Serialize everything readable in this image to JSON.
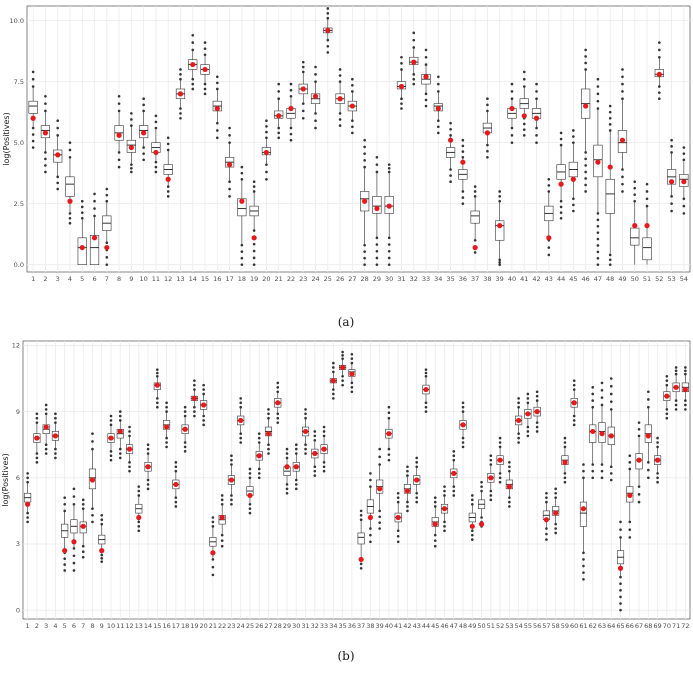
{
  "chart_data": [
    {
      "type": "boxplot",
      "panel_label": "(a)",
      "ylabel": "log(Positives)",
      "ylim": [
        -0.3,
        10.6
      ],
      "yticks": [
        "0.0",
        "2.5",
        "5.0",
        "7.5",
        "10.0"
      ],
      "ytick_values": [
        0,
        2.5,
        5,
        7.5,
        10
      ],
      "grid": true,
      "categories": [
        "1",
        "2",
        "3",
        "4",
        "5",
        "6",
        "7",
        "8",
        "9",
        "10",
        "11",
        "12",
        "13",
        "14",
        "15",
        "16",
        "17",
        "18",
        "19",
        "20",
        "21",
        "22",
        "23",
        "24",
        "25",
        "26",
        "27",
        "28",
        "29",
        "30",
        "31",
        "32",
        "33",
        "34",
        "35",
        "36",
        "37",
        "38",
        "39",
        "40",
        "41",
        "42",
        "43",
        "44",
        "45",
        "46",
        "47",
        "48",
        "49",
        "50",
        "51",
        "52",
        "53",
        "54"
      ],
      "median": [
        6.5,
        5.5,
        4.5,
        3.3,
        0.7,
        0.7,
        1.7,
        5.4,
        4.9,
        5.5,
        4.8,
        3.9,
        7.0,
        8.2,
        8.0,
        6.5,
        4.2,
        2.3,
        2.2,
        4.6,
        6.1,
        6.2,
        7.2,
        6.8,
        9.6,
        6.8,
        6.5,
        2.7,
        2.4,
        2.4,
        7.3,
        8.3,
        7.6,
        6.5,
        4.6,
        3.7,
        2.0,
        5.6,
        1.6,
        6.2,
        6.6,
        6.2,
        2.1,
        3.8,
        3.9,
        6.6,
        4.3,
        2.9,
        5.0,
        1.1,
        0.7,
        7.8,
        3.6,
        3.5
      ],
      "q1": [
        6.2,
        5.2,
        4.2,
        2.8,
        0.0,
        0.0,
        1.4,
        5.1,
        4.6,
        5.2,
        4.6,
        3.7,
        6.8,
        8.0,
        7.8,
        6.3,
        4.0,
        2.0,
        2.0,
        4.5,
        6.0,
        6.0,
        7.0,
        6.6,
        9.5,
        6.6,
        6.3,
        2.2,
        2.1,
        2.1,
        7.2,
        8.2,
        7.4,
        6.3,
        4.4,
        3.5,
        1.7,
        5.4,
        1.0,
        6.0,
        6.4,
        6.0,
        1.8,
        3.5,
        3.6,
        6.0,
        3.6,
        2.1,
        4.6,
        0.8,
        0.2,
        7.7,
        3.3,
        3.2
      ],
      "q3": [
        6.7,
        5.7,
        4.7,
        3.6,
        1.1,
        1.2,
        2.0,
        5.7,
        5.1,
        5.7,
        5.0,
        4.1,
        7.2,
        8.4,
        8.2,
        6.7,
        4.4,
        2.7,
        2.4,
        4.8,
        6.3,
        6.4,
        7.4,
        7.0,
        9.7,
        7.0,
        6.7,
        3.0,
        2.8,
        2.8,
        7.5,
        8.5,
        7.8,
        6.6,
        4.8,
        3.9,
        2.2,
        5.8,
        1.8,
        6.4,
        6.8,
        6.4,
        2.4,
        4.1,
        4.2,
        7.2,
        4.9,
        3.5,
        5.5,
        1.5,
        1.1,
        8.0,
        3.9,
        3.7
      ],
      "wlo": [
        5.6,
        4.6,
        3.6,
        2.1,
        0.0,
        0.0,
        0.9,
        4.6,
        4.1,
        4.8,
        4.2,
        3.2,
        6.4,
        7.6,
        7.4,
        5.8,
        3.4,
        0.8,
        1.4,
        4.1,
        5.6,
        5.6,
        6.6,
        6.2,
        9.2,
        6.2,
        5.9,
        0.8,
        1.1,
        1.1,
        6.8,
        7.8,
        7.0,
        5.9,
        3.9,
        3.0,
        1.0,
        4.9,
        0.2,
        5.6,
        6.0,
        5.6,
        1.0,
        2.6,
        2.7,
        4.6,
        2.1,
        0.4,
        3.9,
        0.0,
        0.0,
        7.3,
        2.8,
        2.7
      ],
      "whi": [
        7.3,
        6.3,
        5.3,
        4.4,
        1.9,
        2.0,
        2.6,
        6.3,
        5.7,
        6.3,
        5.6,
        4.7,
        7.6,
        8.8,
        8.6,
        7.2,
        5.0,
        3.5,
        3.0,
        5.2,
        6.8,
        6.9,
        7.9,
        7.5,
        10.1,
        7.5,
        7.1,
        4.0,
        3.8,
        3.8,
        8.0,
        8.9,
        8.2,
        7.1,
        5.3,
        4.4,
        2.8,
        6.3,
        2.6,
        6.8,
        7.3,
        6.8,
        3.0,
        4.9,
        5.0,
        8.0,
        6.4,
        5.5,
        6.8,
        2.6,
        2.4,
        8.5,
        4.6,
        4.3
      ],
      "omin": [
        4.8,
        3.8,
        3.1,
        1.7,
        0.0,
        0.0,
        0.0,
        4.0,
        3.8,
        4.3,
        3.8,
        2.8,
        6.0,
        7.2,
        7.0,
        5.2,
        2.8,
        0.0,
        0.0,
        3.5,
        5.2,
        5.1,
        6.0,
        5.6,
        8.7,
        5.7,
        5.4,
        0.0,
        0.0,
        0.0,
        6.4,
        7.4,
        6.5,
        5.4,
        3.4,
        2.5,
        0.5,
        4.4,
        0.0,
        5.0,
        5.3,
        5.0,
        0.4,
        1.9,
        2.2,
        3.0,
        0.0,
        0.0,
        3.0,
        0.0,
        0.0,
        6.8,
        2.2,
        2.1
      ],
      "omax": [
        7.9,
        6.9,
        5.9,
        5.0,
        2.6,
        2.9,
        3.1,
        6.9,
        6.2,
        6.8,
        6.1,
        5.2,
        8.0,
        9.4,
        9.1,
        7.7,
        5.6,
        4.0,
        3.4,
        5.9,
        7.4,
        7.4,
        8.3,
        8.1,
        10.5,
        8.0,
        7.6,
        5.1,
        4.4,
        4.1,
        8.5,
        9.5,
        8.8,
        7.7,
        5.8,
        5.1,
        3.2,
        6.8,
        3.0,
        7.4,
        7.9,
        7.4,
        3.5,
        5.4,
        5.5,
        8.8,
        7.6,
        6.5,
        8.0,
        3.4,
        3.3,
        9.1,
        5.1,
        4.8
      ],
      "observed": [
        6.0,
        5.4,
        4.5,
        2.6,
        0.7,
        1.1,
        0.7,
        5.3,
        4.8,
        5.4,
        4.6,
        3.5,
        7.0,
        8.2,
        8.0,
        6.4,
        4.1,
        2.6,
        1.1,
        4.6,
        6.1,
        6.4,
        7.2,
        6.9,
        9.6,
        6.8,
        6.5,
        2.6,
        2.3,
        2.4,
        7.3,
        8.3,
        7.7,
        6.4,
        5.1,
        4.2,
        0.7,
        5.4,
        1.6,
        6.4,
        6.1,
        6.0,
        1.1,
        3.3,
        3.5,
        6.5,
        4.2,
        4.0,
        5.1,
        1.6,
        1.6,
        7.8,
        3.4,
        3.4
      ]
    },
    {
      "type": "boxplot",
      "panel_label": "(b)",
      "ylabel": "log(Positives)",
      "ylim": [
        -0.4,
        12.2
      ],
      "yticks": [
        "0",
        "3",
        "6",
        "9",
        "12"
      ],
      "ytick_values": [
        0,
        3,
        6,
        9,
        12
      ],
      "grid": true,
      "categories": [
        "1",
        "2",
        "3",
        "4",
        "5",
        "6",
        "7",
        "8",
        "9",
        "10",
        "11",
        "12",
        "13",
        "14",
        "15",
        "16",
        "17",
        "18",
        "19",
        "20",
        "21",
        "22",
        "23",
        "24",
        "25",
        "26",
        "27",
        "28",
        "29",
        "30",
        "31",
        "32",
        "33",
        "34",
        "35",
        "36",
        "37",
        "38",
        "39",
        "40",
        "41",
        "42",
        "43",
        "44",
        "45",
        "46",
        "47",
        "48",
        "49",
        "50",
        "51",
        "52",
        "53",
        "54",
        "55",
        "56",
        "57",
        "58",
        "59",
        "60",
        "61",
        "62",
        "63",
        "64",
        "65",
        "66",
        "67",
        "68",
        "69",
        "70",
        "71",
        "72"
      ],
      "median": [
        5.1,
        7.8,
        8.2,
        7.9,
        3.6,
        3.8,
        3.8,
        6.0,
        3.2,
        7.8,
        8.0,
        7.3,
        4.6,
        6.5,
        10.2,
        8.4,
        5.7,
        8.2,
        9.6,
        9.3,
        3.1,
        4.1,
        5.9,
        8.6,
        5.4,
        7.0,
        8.1,
        9.4,
        6.3,
        6.5,
        8.1,
        7.1,
        7.3,
        10.4,
        11.0,
        10.8,
        3.3,
        4.7,
        5.6,
        8.0,
        4.2,
        5.5,
        5.9,
        10.0,
        4.0,
        4.6,
        6.2,
        8.4,
        4.2,
        4.8,
        6.0,
        6.8,
        5.7,
        8.6,
        8.9,
        9.0,
        4.3,
        4.5,
        6.8,
        9.4,
        4.4,
        8.1,
        8.1,
        7.9,
        2.4,
        5.3,
        6.8,
        8.0,
        6.8,
        9.7,
        10.1,
        10.1
      ],
      "q1": [
        4.9,
        7.6,
        8.0,
        7.7,
        3.3,
        3.5,
        3.5,
        5.5,
        3.0,
        7.6,
        7.8,
        7.1,
        4.4,
        6.3,
        10.0,
        8.2,
        5.5,
        8.0,
        9.5,
        9.1,
        2.9,
        3.9,
        5.7,
        8.4,
        5.2,
        6.8,
        7.9,
        9.2,
        6.1,
        6.3,
        7.9,
        6.9,
        7.1,
        10.3,
        10.9,
        10.6,
        3.0,
        4.4,
        5.3,
        7.8,
        4.0,
        5.3,
        5.7,
        9.8,
        3.8,
        4.4,
        6.0,
        8.2,
        4.0,
        4.6,
        5.8,
        6.6,
        5.5,
        8.4,
        8.7,
        8.8,
        4.1,
        4.3,
        6.6,
        9.2,
        3.8,
        7.6,
        7.6,
        7.5,
        2.1,
        4.9,
        6.4,
        7.6,
        6.6,
        9.5,
        9.9,
        9.9
      ],
      "q3": [
        5.3,
        8.0,
        8.4,
        8.1,
        3.9,
        4.1,
        4.0,
        6.4,
        3.4,
        8.0,
        8.2,
        7.5,
        4.8,
        6.7,
        10.3,
        8.6,
        5.9,
        8.4,
        9.7,
        9.5,
        3.3,
        4.3,
        6.1,
        8.8,
        5.6,
        7.2,
        8.3,
        9.6,
        6.5,
        6.7,
        8.3,
        7.3,
        7.5,
        10.5,
        11.1,
        10.9,
        3.5,
        5.0,
        5.9,
        8.2,
        4.4,
        5.7,
        6.1,
        10.2,
        4.2,
        4.8,
        6.4,
        8.6,
        4.4,
        5.0,
        6.2,
        7.0,
        5.9,
        8.8,
        9.1,
        9.2,
        4.5,
        4.7,
        7.0,
        9.6,
        4.9,
        8.4,
        8.5,
        8.3,
        2.7,
        5.6,
        7.1,
        8.4,
        7.0,
        9.9,
        10.3,
        10.3
      ],
      "wlo": [
        4.4,
        7.1,
        7.5,
        7.3,
        2.6,
        2.8,
        2.9,
        4.6,
        2.5,
        7.2,
        7.3,
        6.7,
        4.0,
        5.9,
        9.6,
        7.8,
        5.1,
        7.6,
        9.2,
        8.8,
        2.3,
        3.4,
        5.2,
        8.0,
        4.8,
        6.4,
        7.5,
        8.9,
        5.7,
        5.9,
        7.5,
        6.5,
        6.7,
        10.0,
        10.6,
        10.3,
        2.3,
        3.7,
        4.5,
        7.3,
        3.6,
        4.9,
        5.3,
        9.4,
        3.4,
        4.0,
        5.6,
        7.8,
        3.6,
        4.2,
        5.4,
        6.2,
        5.1,
        8.0,
        8.3,
        8.5,
        3.7,
        3.9,
        6.2,
        8.8,
        2.6,
        6.6,
        6.6,
        6.5,
        1.5,
        4.0,
        5.6,
        6.7,
        6.2,
        9.1,
        9.5,
        9.5
      ],
      "whi": [
        5.8,
        8.5,
        8.9,
        8.5,
        4.5,
        4.8,
        4.6,
        7.3,
        3.9,
        8.4,
        8.6,
        7.9,
        5.2,
        7.1,
        10.6,
        9.0,
        6.3,
        8.8,
        10.0,
        9.8,
        3.8,
        4.8,
        6.6,
        9.2,
        6.0,
        7.6,
        8.7,
        9.9,
        6.9,
        7.1,
        8.7,
        7.7,
        7.9,
        10.8,
        11.4,
        11.2,
        4.1,
        5.6,
        6.6,
        8.7,
        4.9,
        6.1,
        6.5,
        10.6,
        4.7,
        5.2,
        6.8,
        9.0,
        4.8,
        5.4,
        6.6,
        7.4,
        6.3,
        9.2,
        9.4,
        9.5,
        4.9,
        5.1,
        7.4,
        10.0,
        6.0,
        9.2,
        9.3,
        9.1,
        3.3,
        6.4,
        7.9,
        9.2,
        7.4,
        10.2,
        10.7,
        10.7
      ],
      "omin": [
        4.0,
        6.7,
        7.1,
        6.9,
        1.8,
        1.8,
        2.4,
        4.0,
        2.2,
        6.8,
        6.9,
        6.3,
        3.6,
        5.5,
        9.2,
        7.4,
        4.7,
        7.2,
        8.8,
        8.4,
        1.6,
        2.9,
        4.8,
        7.6,
        4.4,
        6.0,
        7.1,
        8.5,
        5.3,
        5.5,
        7.1,
        6.1,
        6.3,
        9.6,
        10.2,
        9.9,
        1.9,
        3.1,
        3.7,
        6.8,
        3.1,
        4.5,
        4.9,
        9.0,
        2.9,
        3.6,
        5.2,
        7.4,
        3.2,
        3.8,
        5.0,
        5.8,
        4.7,
        7.6,
        7.9,
        8.1,
        3.2,
        3.5,
        5.8,
        8.4,
        1.4,
        6.0,
        6.0,
        5.9,
        0.0,
        3.3,
        4.9,
        6.0,
        5.8,
        8.7,
        9.1,
        9.1
      ],
      "omax": [
        6.2,
        8.9,
        9.3,
        8.9,
        5.1,
        5.5,
        5.0,
        8.0,
        4.3,
        8.8,
        9.0,
        8.3,
        5.6,
        7.5,
        10.9,
        9.4,
        6.7,
        9.2,
        10.4,
        10.2,
        4.2,
        5.2,
        7.0,
        9.6,
        6.4,
        8.0,
        9.1,
        10.3,
        7.3,
        7.5,
        9.1,
        8.1,
        8.3,
        11.2,
        11.7,
        11.6,
        4.5,
        6.2,
        7.3,
        9.2,
        5.3,
        6.5,
        6.9,
        10.9,
        5.1,
        5.6,
        7.2,
        9.4,
        5.2,
        5.8,
        7.0,
        7.8,
        6.7,
        9.6,
        9.8,
        9.9,
        5.3,
        5.5,
        7.8,
        10.4,
        6.6,
        10.1,
        10.3,
        10.5,
        4.0,
        7.0,
        8.5,
        9.9,
        7.8,
        10.6,
        11.0,
        11.0
      ],
      "observed": [
        4.8,
        7.8,
        8.3,
        7.9,
        2.7,
        3.1,
        3.8,
        5.9,
        2.7,
        7.8,
        8.1,
        7.3,
        4.2,
        6.5,
        10.2,
        8.3,
        5.7,
        8.2,
        9.6,
        9.3,
        2.6,
        4.2,
        5.9,
        8.6,
        5.2,
        7.0,
        8.0,
        9.4,
        6.5,
        6.5,
        8.1,
        7.1,
        7.3,
        10.4,
        11.0,
        10.7,
        2.3,
        4.2,
        5.5,
        8.0,
        4.2,
        5.4,
        5.9,
        10.0,
        3.9,
        4.6,
        6.2,
        8.4,
        3.8,
        3.9,
        6.0,
        6.8,
        5.6,
        8.6,
        8.9,
        9.0,
        4.1,
        4.4,
        6.7,
        9.4,
        4.6,
        8.1,
        8.0,
        7.9,
        1.9,
        5.2,
        6.8,
        7.9,
        6.8,
        9.7,
        10.1,
        10.0
      ]
    }
  ]
}
